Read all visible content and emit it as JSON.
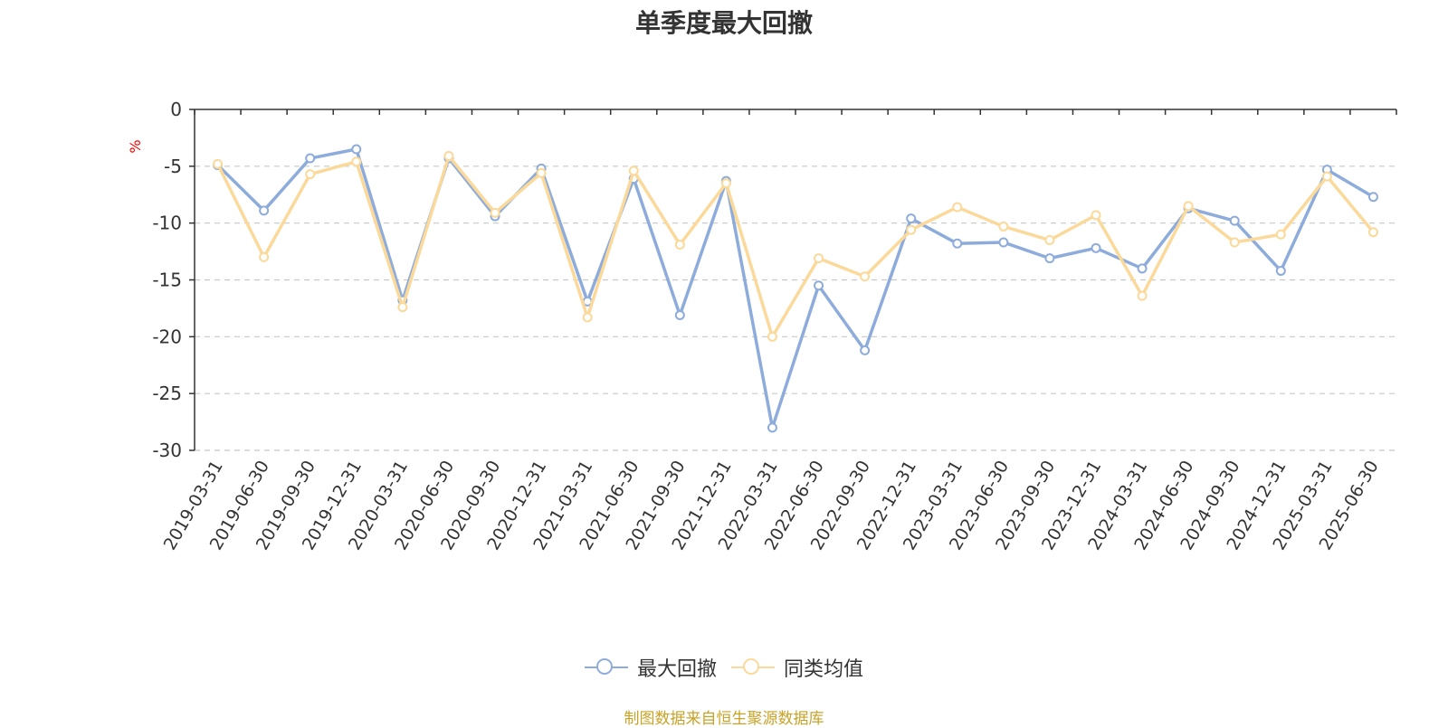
{
  "chart_data": {
    "type": "line",
    "title": "单季度最大回撤",
    "ylabel": "%",
    "xlabel": "",
    "ylim": [
      -30,
      0
    ],
    "yticks": [
      0,
      -5,
      -10,
      -15,
      -20,
      -25,
      -30
    ],
    "grid": true,
    "legend_position": "bottom",
    "categories": [
      "2019-03-31",
      "2019-06-30",
      "2019-09-30",
      "2019-12-31",
      "2020-03-31",
      "2020-06-30",
      "2020-09-30",
      "2020-12-31",
      "2021-03-31",
      "2021-06-30",
      "2021-09-30",
      "2021-12-31",
      "2022-03-31",
      "2022-06-30",
      "2022-09-30",
      "2022-12-31",
      "2023-03-31",
      "2023-06-30",
      "2023-09-30",
      "2023-12-31",
      "2024-03-31",
      "2024-06-30",
      "2024-09-30",
      "2024-12-31",
      "2025-03-31",
      "2025-06-30"
    ],
    "series": [
      {
        "name": "最大回撤",
        "color": "#8eacdb",
        "values": [
          -4.9,
          -8.9,
          -4.3,
          -3.5,
          -16.8,
          -4.3,
          -9.4,
          -5.2,
          -16.9,
          -6.1,
          -18.1,
          -6.3,
          -28.0,
          -15.5,
          -21.2,
          -9.6,
          -11.8,
          -11.7,
          -13.1,
          -12.2,
          -14.0,
          -8.7,
          -9.8,
          -14.2,
          -5.3,
          -7.7
        ]
      },
      {
        "name": "同类均值",
        "color": "#fbd99a",
        "values": [
          -4.8,
          -13.0,
          -5.7,
          -4.6,
          -17.4,
          -4.1,
          -9.1,
          -5.6,
          -18.3,
          -5.4,
          -11.9,
          -6.5,
          -20.0,
          -13.1,
          -14.7,
          -10.6,
          -8.6,
          -10.3,
          -11.5,
          -9.3,
          -16.4,
          -8.5,
          -11.7,
          -11.0,
          -5.9,
          -10.8
        ]
      }
    ]
  },
  "source_note": "制图数据来自恒生聚源数据库"
}
